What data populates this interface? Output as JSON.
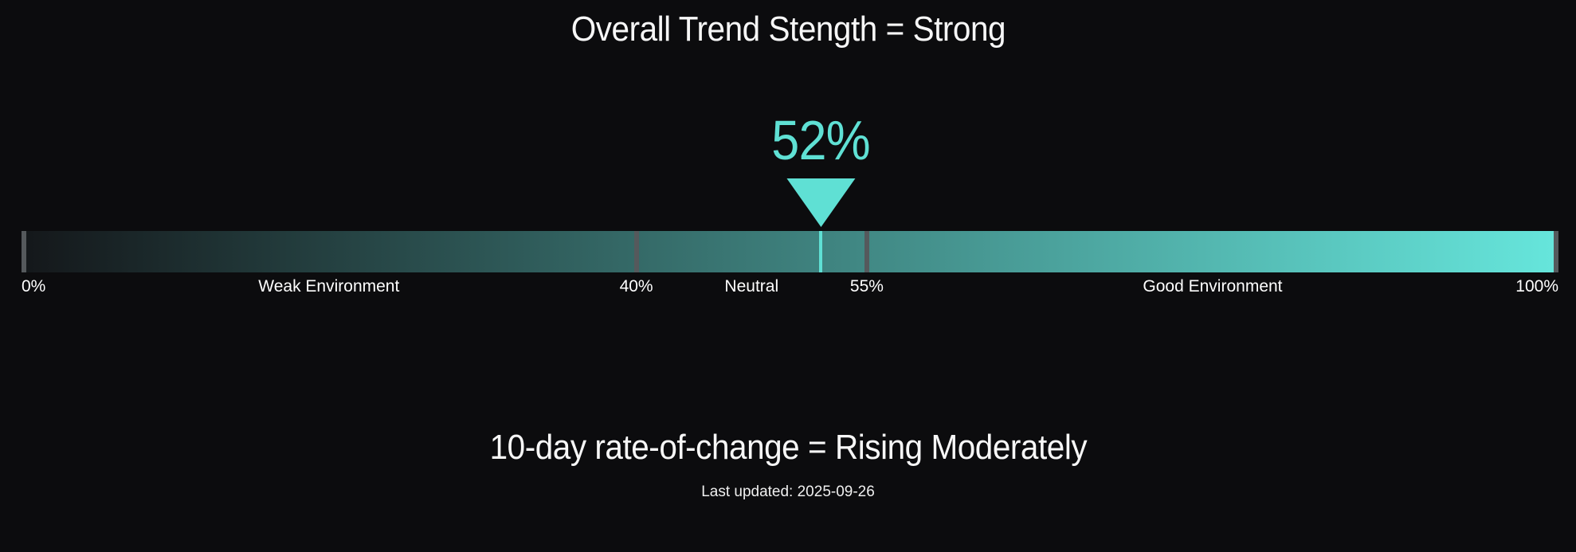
{
  "colors": {
    "background": "#0c0c0e",
    "accent": "#5fe0d4",
    "tick": "#55595c",
    "text": "#f5f5f5",
    "gradient_start": "#14171a",
    "gradient_end": "#66e6dc"
  },
  "title": "Overall Trend Stength = Strong",
  "gauge": {
    "value_percent": 52,
    "value_label": "52%",
    "ticks": [
      {
        "label": "0%",
        "percent": 0
      },
      {
        "label": "40%",
        "percent": 40
      },
      {
        "label": "55%",
        "percent": 55
      },
      {
        "label": "100%",
        "percent": 100
      }
    ],
    "zones": [
      {
        "label": "Weak Environment",
        "from": 0,
        "to": 40
      },
      {
        "label": "Neutral",
        "from": 40,
        "to": 55
      },
      {
        "label": "Good Environment",
        "from": 55,
        "to": 100
      }
    ]
  },
  "subtitle": "10-day rate-of-change = Rising Moderately",
  "last_updated": "Last updated: 2025-09-26",
  "chart_data": {
    "type": "gauge",
    "title": "Overall Trend Stength = Strong",
    "value": 52,
    "value_label": "52%",
    "range": [
      0,
      100
    ],
    "thresholds": [
      40,
      55
    ],
    "tick_labels": [
      "0%",
      "40%",
      "55%",
      "100%"
    ],
    "zones": [
      {
        "label": "Weak Environment",
        "from": 0,
        "to": 40
      },
      {
        "label": "Neutral",
        "from": 40,
        "to": 55
      },
      {
        "label": "Good Environment",
        "from": 55,
        "to": 100
      }
    ],
    "bar_gradient": [
      "#14171a",
      "#66e6dc"
    ],
    "legend": "none",
    "subtitle": "10-day rate-of-change = Rising Moderately",
    "footnote": "Last updated: 2025-09-26"
  }
}
